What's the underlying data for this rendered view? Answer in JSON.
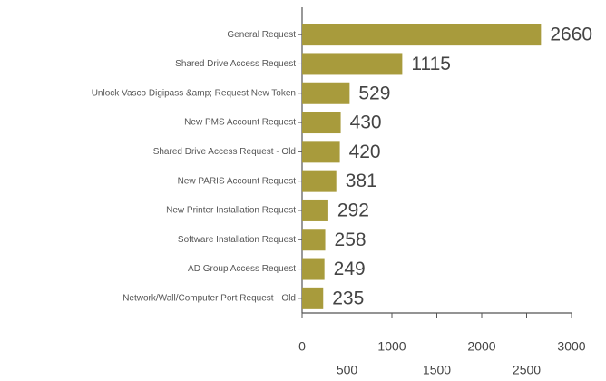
{
  "chart_data": {
    "type": "bar",
    "orientation": "horizontal",
    "categories": [
      "General Request",
      "Shared Drive Access Request",
      "Unlock Vasco Digipass &amp; Request New Token",
      "New PMS Account Request",
      "Shared Drive Access Request - Old",
      "New PARIS Account Request",
      "New Printer Installation Request",
      "Software Installation Request",
      "AD Group Access Request",
      "Network/Wall/Computer Port Request - Old"
    ],
    "values": [
      2660,
      1115,
      529,
      430,
      420,
      381,
      292,
      258,
      249,
      235
    ],
    "color": "#a89b3c",
    "xlim": [
      0,
      3000
    ],
    "xticks": [
      0,
      500,
      1000,
      1500,
      2000,
      2500,
      3000
    ]
  }
}
